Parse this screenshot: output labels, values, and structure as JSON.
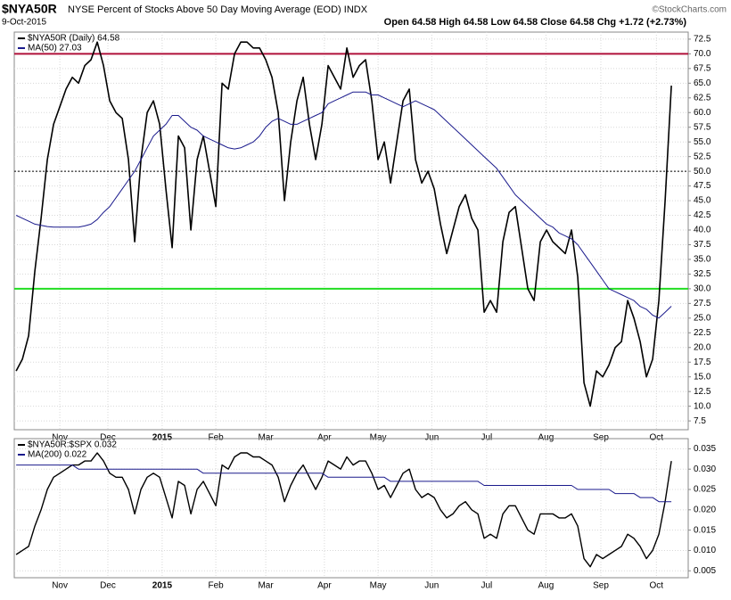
{
  "chart_data": [
    {
      "type": "line",
      "title": "$NYA50R",
      "subtitle": "NYSE Percent of Stocks Above 50 Day Moving Average (EOD) INDX",
      "date": "9-Oct-2015",
      "quote": "Open 64.58  High 64.58  Low 64.58  Close 64.58  Chg +1.72 (+2.73%)",
      "credit": "©StockCharts.com",
      "xlim": [
        -0.3,
        107.7
      ],
      "xticks": [
        {
          "value": 7,
          "label": "Nov"
        },
        {
          "value": 14.7,
          "label": "Dec"
        },
        {
          "value": 23.4,
          "label": "2015"
        },
        {
          "value": 32,
          "label": "Feb"
        },
        {
          "value": 40,
          "label": "Mar"
        },
        {
          "value": 49.4,
          "label": "Apr"
        },
        {
          "value": 58,
          "label": "May"
        },
        {
          "value": 66.6,
          "label": "Jun"
        },
        {
          "value": 75.4,
          "label": "Jul"
        },
        {
          "value": 84.9,
          "label": "Aug"
        },
        {
          "value": 93.7,
          "label": "Sep"
        },
        {
          "value": 102.6,
          "label": "Oct"
        }
      ],
      "ylim": [
        6,
        73.7
      ],
      "yticks": [
        7.5,
        {
          "value": 10,
          "label": "10.0"
        },
        12.5,
        {
          "value": 15,
          "label": "15.0"
        },
        17.5,
        {
          "value": 20,
          "label": "20.0"
        },
        22.5,
        {
          "value": 25,
          "label": "25.0"
        },
        27.5,
        {
          "value": 30,
          "label": "30.0"
        },
        32.5,
        {
          "value": 35,
          "label": "35.0"
        },
        37.5,
        {
          "value": 40,
          "label": "40.0"
        },
        42.5,
        {
          "value": 45,
          "label": "45.0"
        },
        47.5,
        {
          "value": 50,
          "label": "50.0"
        },
        52.5,
        {
          "value": 55,
          "label": "55.0"
        },
        57.5,
        {
          "value": 60,
          "label": "60.0"
        },
        62.5,
        {
          "value": 65,
          "label": "65.0"
        },
        67.5,
        {
          "value": 70,
          "label": "70.0"
        },
        72.5
      ],
      "grid": true,
      "reference_lines": [
        {
          "value": 70,
          "color": "#b0103a"
        },
        {
          "value": 50,
          "color": "#000000",
          "dashed": true
        },
        {
          "value": 30,
          "color": "#22dd22"
        }
      ],
      "series": [
        {
          "name": "$NYA50R (Daily) 64.58",
          "color": "#000000",
          "width": 1.6,
          "values": [
            16,
            18,
            22,
            33,
            42,
            52,
            58,
            61,
            64,
            66,
            65,
            68,
            69,
            72,
            68,
            62,
            60,
            59,
            52,
            38,
            52,
            60,
            62,
            58,
            47,
            37,
            56,
            54,
            40,
            52,
            56,
            50,
            44,
            65,
            64,
            70,
            72,
            72,
            71,
            71,
            69,
            66,
            60,
            45,
            55,
            62,
            66,
            58,
            52,
            58,
            68,
            66,
            64,
            71,
            66,
            68,
            69,
            62,
            52,
            55,
            48,
            55,
            62,
            64,
            52,
            48,
            50,
            47,
            41,
            36,
            40,
            44,
            46,
            42,
            40,
            26,
            28,
            26,
            38,
            43,
            44,
            37,
            30,
            28,
            38,
            40,
            38,
            37,
            36,
            40,
            32,
            14,
            10,
            16,
            15,
            17,
            20,
            21,
            28,
            25,
            21,
            15,
            18,
            28,
            45,
            64.58
          ]
        },
        {
          "name": "MA(50) 27.03",
          "color": "#1a1a8c",
          "width": 1,
          "values": [
            42.5,
            42,
            41.5,
            41,
            40.8,
            40.6,
            40.5,
            40.5,
            40.5,
            40.5,
            40.5,
            40.7,
            41,
            41.8,
            43,
            44,
            45.5,
            47,
            48.5,
            50,
            52,
            54,
            56,
            57,
            58,
            59.5,
            59.5,
            58.5,
            57.5,
            57,
            56,
            55.5,
            55,
            54.5,
            54,
            53.8,
            54,
            54.5,
            55,
            56,
            57.5,
            58.5,
            59,
            58.5,
            58,
            58,
            58.5,
            59,
            59.5,
            60,
            61.5,
            62,
            62.5,
            63,
            63.5,
            63.5,
            63.5,
            63,
            63,
            62.5,
            62,
            61.5,
            61,
            61.5,
            62,
            61.5,
            61,
            60.5,
            59.5,
            58.5,
            57.5,
            56.5,
            55.5,
            54.5,
            53.5,
            52.5,
            51.5,
            50.5,
            49,
            47.5,
            46,
            45,
            44,
            43,
            42,
            41,
            40.5,
            39.5,
            39,
            38.5,
            37.5,
            36,
            34.5,
            33,
            31.5,
            30,
            29.5,
            29,
            28.5,
            28,
            27,
            26.5,
            25.5,
            25,
            26,
            27.03
          ]
        }
      ]
    },
    {
      "type": "line",
      "xlim": [
        -0.3,
        107.7
      ],
      "xticks": [
        {
          "value": 7,
          "label": "Nov"
        },
        {
          "value": 14.7,
          "label": "Dec"
        },
        {
          "value": 23.4,
          "label": "2015"
        },
        {
          "value": 32,
          "label": "Feb"
        },
        {
          "value": 40,
          "label": "Mar"
        },
        {
          "value": 49.4,
          "label": "Apr"
        },
        {
          "value": 58,
          "label": "May"
        },
        {
          "value": 66.6,
          "label": "Jun"
        },
        {
          "value": 75.4,
          "label": "Jul"
        },
        {
          "value": 84.9,
          "label": "Aug"
        },
        {
          "value": 93.7,
          "label": "Sep"
        },
        {
          "value": 102.6,
          "label": "Oct"
        }
      ],
      "ylim": [
        0.0033,
        0.0375
      ],
      "yticks": [
        0.005,
        {
          "value": 0.01,
          "label": "0.010"
        },
        0.015,
        {
          "value": 0.02,
          "label": "0.020"
        },
        0.025,
        {
          "value": 0.03,
          "label": "0.030"
        },
        0.035
      ],
      "grid": true,
      "series": [
        {
          "name": "$NYA50R:$SPX 0.032",
          "color": "#000000",
          "width": 1.4,
          "values": [
            0.009,
            0.01,
            0.011,
            0.016,
            0.02,
            0.025,
            0.028,
            0.029,
            0.03,
            0.031,
            0.031,
            0.032,
            0.032,
            0.034,
            0.032,
            0.029,
            0.028,
            0.028,
            0.025,
            0.019,
            0.025,
            0.028,
            0.029,
            0.028,
            0.023,
            0.018,
            0.027,
            0.026,
            0.019,
            0.025,
            0.027,
            0.024,
            0.021,
            0.031,
            0.03,
            0.033,
            0.034,
            0.034,
            0.033,
            0.033,
            0.032,
            0.031,
            0.028,
            0.022,
            0.026,
            0.029,
            0.031,
            0.028,
            0.025,
            0.028,
            0.032,
            0.031,
            0.03,
            0.033,
            0.031,
            0.032,
            0.032,
            0.029,
            0.025,
            0.026,
            0.023,
            0.026,
            0.029,
            0.03,
            0.025,
            0.023,
            0.024,
            0.023,
            0.02,
            0.018,
            0.019,
            0.021,
            0.022,
            0.02,
            0.019,
            0.013,
            0.014,
            0.013,
            0.019,
            0.021,
            0.021,
            0.018,
            0.015,
            0.014,
            0.019,
            0.019,
            0.019,
            0.018,
            0.018,
            0.019,
            0.016,
            0.008,
            0.006,
            0.009,
            0.008,
            0.009,
            0.01,
            0.011,
            0.014,
            0.013,
            0.011,
            0.008,
            0.01,
            0.014,
            0.022,
            0.032
          ]
        },
        {
          "name": "MA(200) 0.022",
          "color": "#1a1a8c",
          "width": 1,
          "values": [
            0.031,
            0.031,
            0.031,
            0.031,
            0.031,
            0.031,
            0.031,
            0.031,
            0.031,
            0.031,
            0.03,
            0.03,
            0.03,
            0.03,
            0.03,
            0.03,
            0.03,
            0.03,
            0.03,
            0.03,
            0.03,
            0.03,
            0.03,
            0.03,
            0.03,
            0.03,
            0.03,
            0.03,
            0.03,
            0.03,
            0.029,
            0.029,
            0.029,
            0.029,
            0.029,
            0.029,
            0.029,
            0.029,
            0.029,
            0.029,
            0.029,
            0.029,
            0.029,
            0.029,
            0.029,
            0.029,
            0.029,
            0.029,
            0.029,
            0.029,
            0.028,
            0.028,
            0.028,
            0.028,
            0.028,
            0.028,
            0.028,
            0.028,
            0.028,
            0.028,
            0.027,
            0.027,
            0.027,
            0.027,
            0.027,
            0.027,
            0.027,
            0.027,
            0.027,
            0.027,
            0.027,
            0.027,
            0.027,
            0.027,
            0.027,
            0.026,
            0.026,
            0.026,
            0.026,
            0.026,
            0.026,
            0.026,
            0.026,
            0.026,
            0.026,
            0.026,
            0.026,
            0.026,
            0.026,
            0.026,
            0.025,
            0.025,
            0.025,
            0.025,
            0.025,
            0.025,
            0.024,
            0.024,
            0.024,
            0.024,
            0.023,
            0.023,
            0.023,
            0.022,
            0.022,
            0.022
          ]
        }
      ]
    }
  ]
}
